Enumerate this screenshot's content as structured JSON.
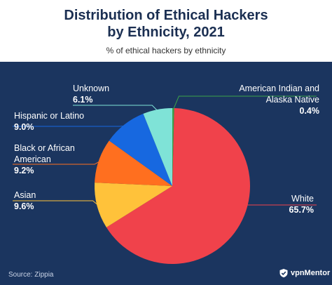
{
  "title_line1": "Distribution of Ethical Hackers",
  "title_line2": "by Ethnicity, 2021",
  "subtitle": "% of ethical hackers by ethnicity",
  "source": "Source: Zippia",
  "brand": "vpnMentor",
  "colors": {
    "background": "#1b355f",
    "header": "#ffffff",
    "title": "#1b2f52"
  },
  "chart_data": {
    "type": "pie",
    "title": "Distribution of Ethical Hackers by Ethnicity, 2021",
    "subtitle": "% of ethical hackers by ethnicity",
    "unit": "%",
    "slices": [
      {
        "label": "American Indian and Alaska Native",
        "value": 0.4,
        "display": "0.4%",
        "color": "#3ba24a"
      },
      {
        "label": "White",
        "value": 65.7,
        "display": "65.7%",
        "color": "#f0424b"
      },
      {
        "label": "Asian",
        "value": 9.6,
        "display": "9.6%",
        "color": "#ffc23a"
      },
      {
        "label": "Black or African American",
        "value": 9.2,
        "display": "9.2%",
        "color": "#ff6f1f"
      },
      {
        "label": "Hispanic or Latino",
        "value": 9.0,
        "display": "9.0%",
        "color": "#1768e0"
      },
      {
        "label": "Unknown",
        "value": 6.1,
        "display": "6.1%",
        "color": "#7fe3d7"
      }
    ]
  }
}
